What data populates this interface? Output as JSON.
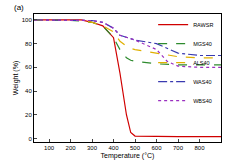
{
  "chart_data": {
    "type": "line",
    "annotations": [
      "(a)"
    ],
    "x_label": "Temperature (°C)",
    "y_label": "Weight (%)",
    "x": [
      30,
      100,
      200,
      250,
      300,
      350,
      400,
      430,
      460,
      480,
      500,
      600,
      650,
      700,
      800,
      900
    ],
    "series": [
      {
        "name": "RAWSR",
        "color": "#d00000",
        "line_style": "solid",
        "values": [
          100,
          100,
          100,
          100,
          98,
          95,
          85,
          55,
          20,
          5,
          2,
          1.5,
          1.5,
          1.5,
          1.5,
          1.5
        ]
      },
      {
        "name": "MGS40",
        "color": "#2e8b2e",
        "line_style": "dash",
        "values": [
          100,
          100,
          99.5,
          99,
          98,
          95,
          85,
          75,
          68,
          66,
          65,
          63,
          62.5,
          62,
          62,
          62
        ]
      },
      {
        "name": "ALS40",
        "color": "#e0b000",
        "line_style": "dash",
        "values": [
          100,
          100,
          100,
          99.5,
          98,
          95,
          90,
          82,
          78,
          76,
          75,
          72,
          70,
          69,
          68,
          68
        ]
      },
      {
        "name": "WAS40",
        "color": "#3a3ab0",
        "line_style": "dashdot",
        "values": [
          100,
          100,
          100,
          100,
          99.5,
          98,
          93,
          87,
          85,
          84,
          83,
          80,
          76,
          72,
          70,
          70
        ]
      },
      {
        "name": "WBS40",
        "color": "#9b30c0",
        "line_style": "dot",
        "values": [
          100,
          100,
          100,
          100,
          99.5,
          98,
          93,
          87,
          85,
          84,
          83,
          75,
          65,
          61,
          60,
          60
        ]
      }
    ],
    "xlim": [
      30,
      900
    ],
    "xticks": [
      100,
      200,
      300,
      400,
      500,
      600,
      700,
      800
    ],
    "ylim": [
      -3,
      105
    ],
    "yticks": [
      0,
      20,
      40,
      60,
      80,
      100
    ],
    "grid": false,
    "legend": "right"
  }
}
